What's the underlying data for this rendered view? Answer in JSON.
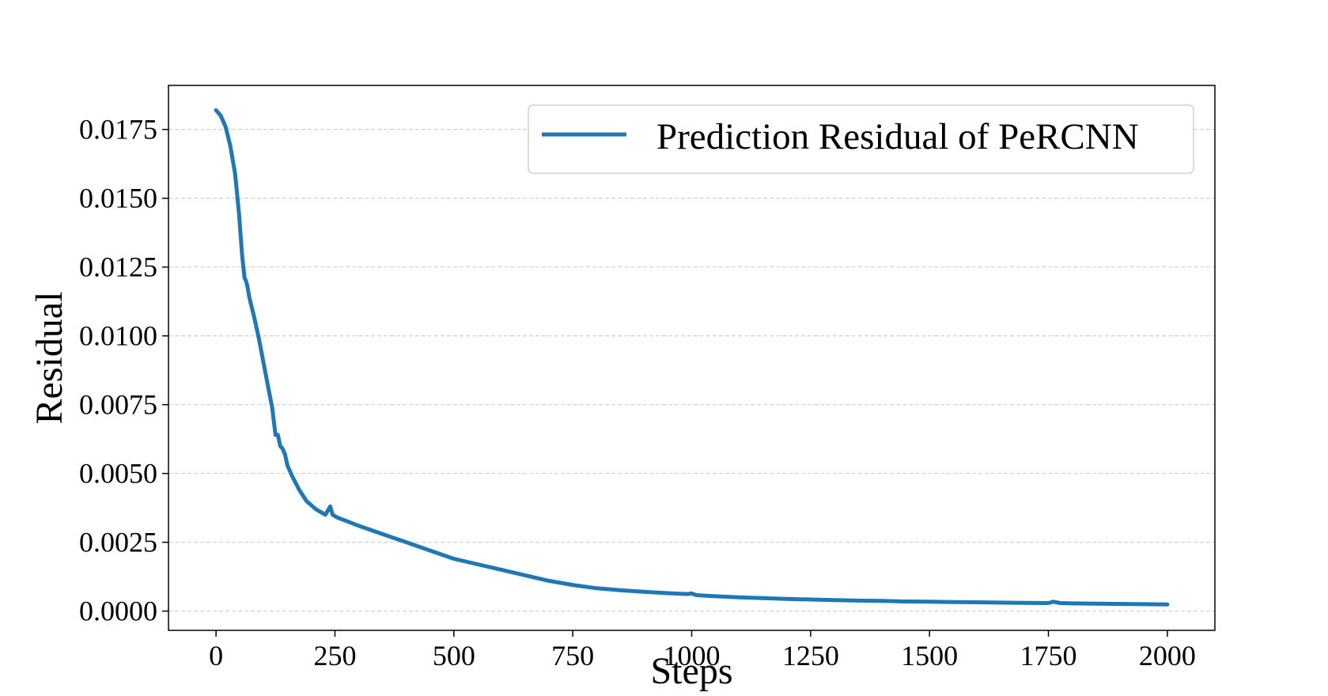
{
  "chart_data": {
    "type": "line",
    "xlabel": "Steps",
    "ylabel": "Residual",
    "xlim": [
      -100,
      2100
    ],
    "ylim": [
      -0.0007,
      0.0191
    ],
    "x_ticks": [
      0,
      250,
      500,
      750,
      1000,
      1250,
      1500,
      1750,
      2000
    ],
    "y_ticks": [
      0.0,
      0.0025,
      0.005,
      0.0075,
      0.01,
      0.0125,
      0.015,
      0.0175
    ],
    "x_tick_labels": [
      "0",
      "250",
      "500",
      "750",
      "1000",
      "1250",
      "1500",
      "1750",
      "2000"
    ],
    "y_tick_labels": [
      "0.0000",
      "0.0025",
      "0.0050",
      "0.0075",
      "0.0100",
      "0.0125",
      "0.0150",
      "0.0175"
    ],
    "grid": "horizontal dashed",
    "legend_position": "upper-right",
    "colors": {
      "series": "#1f77b4",
      "grid": "#c8c8c8",
      "axes": "#000000"
    },
    "series": [
      {
        "name": "Prediction Residual of PeRCNN",
        "x": [
          0,
          10,
          20,
          30,
          40,
          48,
          55,
          60,
          63,
          66,
          70,
          80,
          90,
          100,
          110,
          118,
          125,
          130,
          135,
          140,
          145,
          150,
          160,
          175,
          190,
          210,
          230,
          240,
          245,
          255,
          270,
          300,
          350,
          400,
          450,
          500,
          550,
          600,
          650,
          700,
          750,
          800,
          850,
          900,
          950,
          990,
          1000,
          1010,
          1050,
          1100,
          1150,
          1200,
          1250,
          1300,
          1350,
          1400,
          1450,
          1500,
          1550,
          1600,
          1650,
          1700,
          1750,
          1760,
          1775,
          1800,
          1850,
          1900,
          1950,
          2000
        ],
        "y": [
          0.0182,
          0.018,
          0.0176,
          0.0169,
          0.0159,
          0.0145,
          0.0129,
          0.0121,
          0.012,
          0.0118,
          0.0114,
          0.0107,
          0.0099,
          0.009,
          0.0081,
          0.0074,
          0.0064,
          0.0064,
          0.006,
          0.0059,
          0.0057,
          0.0053,
          0.0049,
          0.0044,
          0.004,
          0.0037,
          0.0035,
          0.0038,
          0.0035,
          0.0034,
          0.0033,
          0.0031,
          0.0028,
          0.0025,
          0.0022,
          0.0019,
          0.0017,
          0.0015,
          0.0013,
          0.0011,
          0.00095,
          0.00083,
          0.00076,
          0.0007,
          0.00065,
          0.00062,
          0.00064,
          0.00058,
          0.00054,
          0.0005,
          0.00047,
          0.00044,
          0.00042,
          0.0004,
          0.00038,
          0.00037,
          0.00035,
          0.00034,
          0.00033,
          0.00032,
          0.00031,
          0.0003,
          0.00029,
          0.00034,
          0.00029,
          0.00028,
          0.00027,
          0.00026,
          0.00025,
          0.00024
        ]
      }
    ]
  }
}
